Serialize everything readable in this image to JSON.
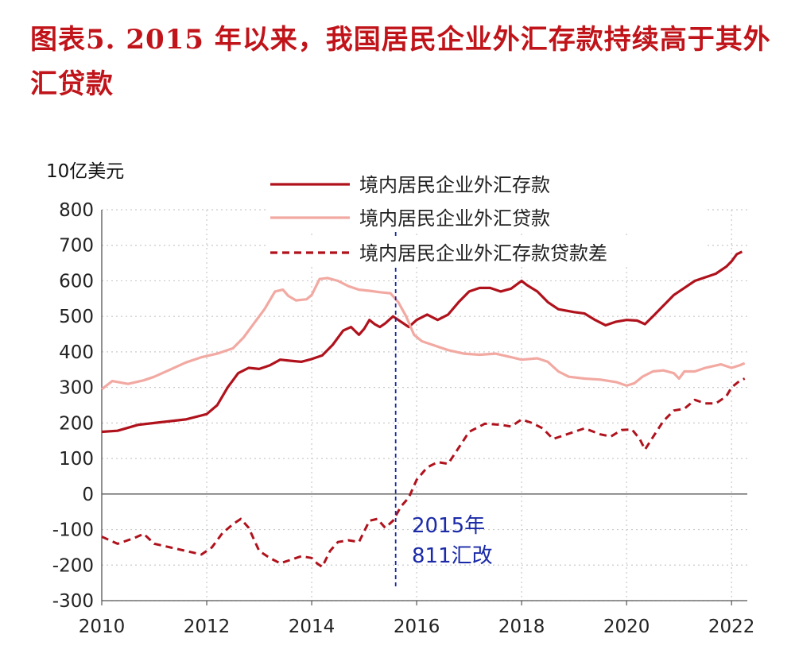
{
  "title": "图表5. 2015 年以来，我国居民企业外汇存款持续高于其外汇贷款",
  "chart_data": {
    "type": "line",
    "title": "图表5. 2015 年以来，我国居民企业外汇存款持续高于其外汇贷款",
    "ylabel": "10亿美元",
    "xlabel": "",
    "xlim": [
      2010,
      2022.3
    ],
    "ylim": [
      -300,
      800
    ],
    "xticks": [
      "2010",
      "2012",
      "2014",
      "2016",
      "2018",
      "2020",
      "2022"
    ],
    "yticks": [
      "800",
      "700",
      "600",
      "500",
      "400",
      "300",
      "200",
      "100",
      "0",
      "-100",
      "-200",
      "-300"
    ],
    "grid": true,
    "legend_position": "top",
    "series": [
      {
        "name": "境内居民企业外汇存款",
        "color": "#b0121c",
        "style": "solid",
        "points": [
          [
            2010.0,
            175
          ],
          [
            2010.3,
            178
          ],
          [
            2010.7,
            195
          ],
          [
            2011.0,
            200
          ],
          [
            2011.3,
            205
          ],
          [
            2011.6,
            210
          ],
          [
            2012.0,
            225
          ],
          [
            2012.2,
            250
          ],
          [
            2012.4,
            300
          ],
          [
            2012.6,
            340
          ],
          [
            2012.8,
            355
          ],
          [
            2013.0,
            352
          ],
          [
            2013.2,
            362
          ],
          [
            2013.4,
            378
          ],
          [
            2013.6,
            375
          ],
          [
            2013.8,
            372
          ],
          [
            2014.0,
            380
          ],
          [
            2014.2,
            390
          ],
          [
            2014.4,
            420
          ],
          [
            2014.6,
            460
          ],
          [
            2014.75,
            470
          ],
          [
            2014.9,
            448
          ],
          [
            2015.0,
            465
          ],
          [
            2015.1,
            490
          ],
          [
            2015.2,
            478
          ],
          [
            2015.3,
            470
          ],
          [
            2015.4,
            480
          ],
          [
            2015.55,
            500
          ],
          [
            2015.7,
            485
          ],
          [
            2015.85,
            470
          ],
          [
            2016.0,
            490
          ],
          [
            2016.2,
            505
          ],
          [
            2016.4,
            490
          ],
          [
            2016.6,
            505
          ],
          [
            2016.8,
            540
          ],
          [
            2017.0,
            570
          ],
          [
            2017.2,
            580
          ],
          [
            2017.4,
            580
          ],
          [
            2017.6,
            570
          ],
          [
            2017.8,
            578
          ],
          [
            2018.0,
            600
          ],
          [
            2018.1,
            588
          ],
          [
            2018.3,
            570
          ],
          [
            2018.5,
            540
          ],
          [
            2018.7,
            520
          ],
          [
            2019.0,
            512
          ],
          [
            2019.2,
            508
          ],
          [
            2019.4,
            490
          ],
          [
            2019.6,
            475
          ],
          [
            2019.8,
            485
          ],
          [
            2020.0,
            490
          ],
          [
            2020.2,
            488
          ],
          [
            2020.35,
            478
          ],
          [
            2020.5,
            500
          ],
          [
            2020.7,
            530
          ],
          [
            2020.9,
            560
          ],
          [
            2021.1,
            580
          ],
          [
            2021.3,
            600
          ],
          [
            2021.5,
            610
          ],
          [
            2021.7,
            620
          ],
          [
            2021.9,
            640
          ],
          [
            2022.0,
            655
          ],
          [
            2022.1,
            675
          ],
          [
            2022.2,
            682
          ]
        ]
      },
      {
        "name": "境内居民企业外汇贷款",
        "color": "#f2a9a2",
        "style": "solid",
        "points": [
          [
            2010.0,
            295
          ],
          [
            2010.2,
            318
          ],
          [
            2010.5,
            310
          ],
          [
            2010.8,
            320
          ],
          [
            2011.0,
            330
          ],
          [
            2011.3,
            350
          ],
          [
            2011.6,
            370
          ],
          [
            2011.9,
            385
          ],
          [
            2012.2,
            395
          ],
          [
            2012.5,
            410
          ],
          [
            2012.7,
            440
          ],
          [
            2012.9,
            480
          ],
          [
            2013.1,
            520
          ],
          [
            2013.3,
            570
          ],
          [
            2013.45,
            575
          ],
          [
            2013.55,
            558
          ],
          [
            2013.7,
            545
          ],
          [
            2013.9,
            548
          ],
          [
            2014.0,
            560
          ],
          [
            2014.15,
            605
          ],
          [
            2014.3,
            608
          ],
          [
            2014.5,
            600
          ],
          [
            2014.7,
            585
          ],
          [
            2014.9,
            575
          ],
          [
            2015.1,
            572
          ],
          [
            2015.3,
            568
          ],
          [
            2015.5,
            565
          ],
          [
            2015.65,
            540
          ],
          [
            2015.8,
            500
          ],
          [
            2015.95,
            448
          ],
          [
            2016.1,
            430
          ],
          [
            2016.3,
            420
          ],
          [
            2016.6,
            405
          ],
          [
            2016.9,
            395
          ],
          [
            2017.2,
            392
          ],
          [
            2017.5,
            395
          ],
          [
            2017.8,
            385
          ],
          [
            2018.0,
            378
          ],
          [
            2018.3,
            382
          ],
          [
            2018.5,
            372
          ],
          [
            2018.7,
            345
          ],
          [
            2018.9,
            330
          ],
          [
            2019.2,
            325
          ],
          [
            2019.5,
            322
          ],
          [
            2019.8,
            315
          ],
          [
            2020.0,
            305
          ],
          [
            2020.15,
            312
          ],
          [
            2020.3,
            330
          ],
          [
            2020.5,
            345
          ],
          [
            2020.7,
            348
          ],
          [
            2020.9,
            340
          ],
          [
            2021.0,
            325
          ],
          [
            2021.1,
            345
          ],
          [
            2021.3,
            345
          ],
          [
            2021.5,
            355
          ],
          [
            2021.8,
            365
          ],
          [
            2022.0,
            355
          ],
          [
            2022.15,
            362
          ],
          [
            2022.25,
            368
          ]
        ]
      },
      {
        "name": "境内居民企业外汇存款贷款差",
        "color": "#b0121c",
        "style": "dashed",
        "points": [
          [
            2010.0,
            -120
          ],
          [
            2010.3,
            -140
          ],
          [
            2010.6,
            -125
          ],
          [
            2010.8,
            -112
          ],
          [
            2011.0,
            -140
          ],
          [
            2011.3,
            -150
          ],
          [
            2011.6,
            -160
          ],
          [
            2011.9,
            -170
          ],
          [
            2012.1,
            -150
          ],
          [
            2012.3,
            -110
          ],
          [
            2012.5,
            -85
          ],
          [
            2012.65,
            -70
          ],
          [
            2012.8,
            -95
          ],
          [
            2013.0,
            -160
          ],
          [
            2013.2,
            -180
          ],
          [
            2013.4,
            -195
          ],
          [
            2013.6,
            -185
          ],
          [
            2013.8,
            -175
          ],
          [
            2014.0,
            -180
          ],
          [
            2014.1,
            -195
          ],
          [
            2014.2,
            -205
          ],
          [
            2014.35,
            -160
          ],
          [
            2014.5,
            -135
          ],
          [
            2014.7,
            -130
          ],
          [
            2014.9,
            -135
          ],
          [
            2015.1,
            -75
          ],
          [
            2015.25,
            -70
          ],
          [
            2015.4,
            -95
          ],
          [
            2015.55,
            -75
          ],
          [
            2015.7,
            -35
          ],
          [
            2015.85,
            -10
          ],
          [
            2016.0,
            40
          ],
          [
            2016.2,
            75
          ],
          [
            2016.4,
            90
          ],
          [
            2016.6,
            85
          ],
          [
            2016.8,
            130
          ],
          [
            2017.0,
            175
          ],
          [
            2017.3,
            198
          ],
          [
            2017.6,
            195
          ],
          [
            2017.8,
            190
          ],
          [
            2018.0,
            210
          ],
          [
            2018.2,
            200
          ],
          [
            2018.4,
            185
          ],
          [
            2018.6,
            155
          ],
          [
            2018.9,
            170
          ],
          [
            2019.2,
            185
          ],
          [
            2019.5,
            168
          ],
          [
            2019.7,
            162
          ],
          [
            2019.9,
            180
          ],
          [
            2020.1,
            182
          ],
          [
            2020.25,
            155
          ],
          [
            2020.35,
            125
          ],
          [
            2020.5,
            160
          ],
          [
            2020.7,
            205
          ],
          [
            2020.9,
            235
          ],
          [
            2021.1,
            240
          ],
          [
            2021.3,
            265
          ],
          [
            2021.5,
            255
          ],
          [
            2021.7,
            255
          ],
          [
            2021.9,
            275
          ],
          [
            2022.0,
            300
          ],
          [
            2022.15,
            318
          ],
          [
            2022.25,
            325
          ]
        ]
      }
    ],
    "vline": {
      "x": 2015.6,
      "color": "#1a2aa8"
    },
    "annotations": [
      "2015年",
      "811汇改"
    ]
  }
}
